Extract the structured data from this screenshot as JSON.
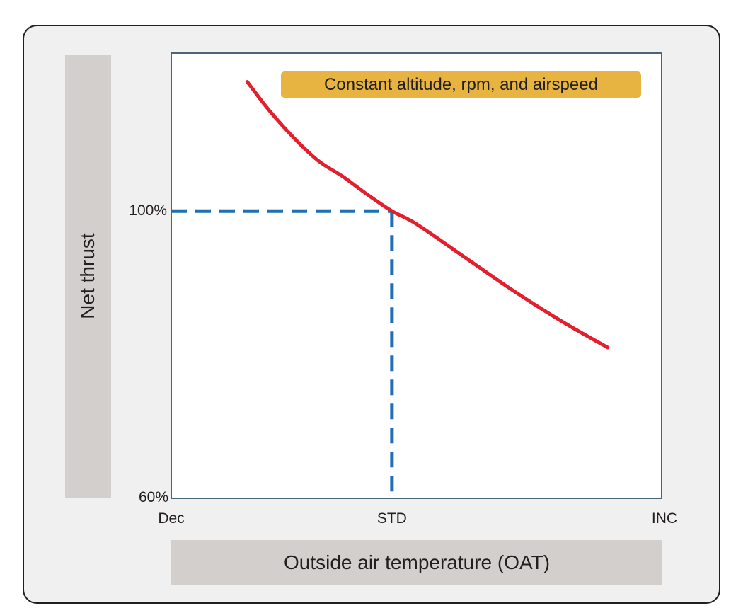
{
  "chart_data": {
    "type": "line",
    "title": "",
    "annotation": "Constant altitude, rpm, and airspeed",
    "xlabel": "Outside air temperature (OAT)",
    "ylabel": "Net thrust",
    "x_categories": [
      "Dec",
      "STD",
      "INC"
    ],
    "x_scale_note": "qualitative: Dec = 0, STD = 0.45, INC = 1 (relative temperature position)",
    "y_ticks": [
      "60%",
      "100%"
    ],
    "ylim": [
      60,
      122
    ],
    "series": [
      {
        "color": "#e31e2d",
        "x": [
          0.155,
          0.2,
          0.25,
          0.3,
          0.35,
          0.4,
          0.45,
          0.5,
          0.6,
          0.7,
          0.8,
          0.89
        ],
        "y": [
          118,
          114,
          110.2,
          107,
          104.8,
          102.3,
          100,
          98.2,
          93.5,
          88.8,
          84.5,
          81
        ]
      }
    ],
    "reference_lines": {
      "color": "#1f6fb2",
      "style": "dashed",
      "x_at": "STD",
      "y_at": "100%"
    },
    "grid": false,
    "legend": "none"
  }
}
